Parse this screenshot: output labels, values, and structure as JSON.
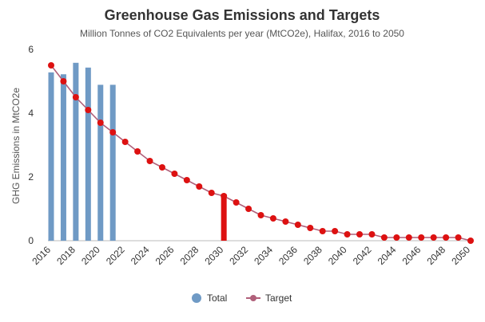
{
  "chart_data": {
    "type": "bar",
    "title": "Greenhouse Gas Emissions and Targets",
    "subtitle": "Million Tonnes of CO2 Equivalents per year (MtCO2e), Halifax, 2016 to 2050",
    "xlabel": "",
    "ylabel": "GHG Emissions in MtCO2e",
    "ylim": [
      0,
      6
    ],
    "y_ticks": [
      0,
      2,
      4,
      6
    ],
    "x_ticks": [
      2016,
      2018,
      2020,
      2022,
      2024,
      2026,
      2028,
      2030,
      2032,
      2034,
      2036,
      2038,
      2040,
      2042,
      2044,
      2046,
      2048,
      2050
    ],
    "x_range": [
      2016,
      2050
    ],
    "grid": false,
    "legend_position": "bottom",
    "series": [
      {
        "name": "Total",
        "type": "bar",
        "color": "#6f9ac5",
        "x": [
          2016,
          2017,
          2018,
          2019,
          2020,
          2021
        ],
        "values": [
          5.28,
          5.22,
          5.58,
          5.43,
          4.89,
          4.89
        ]
      },
      {
        "name": "Target",
        "type": "line",
        "line_color": "#b0607a",
        "marker_color": "#dd1111",
        "x": [
          2016,
          2017,
          2018,
          2019,
          2020,
          2021,
          2022,
          2023,
          2024,
          2025,
          2026,
          2027,
          2028,
          2029,
          2030,
          2031,
          2032,
          2033,
          2034,
          2035,
          2036,
          2037,
          2038,
          2039,
          2040,
          2041,
          2042,
          2043,
          2044,
          2045,
          2046,
          2047,
          2048,
          2049,
          2050
        ],
        "values": [
          5.5,
          5.0,
          4.5,
          4.1,
          3.7,
          3.4,
          3.1,
          2.8,
          2.5,
          2.3,
          2.1,
          1.9,
          1.7,
          1.5,
          1.4,
          1.2,
          1.0,
          0.8,
          0.7,
          0.6,
          0.5,
          0.4,
          0.3,
          0.3,
          0.2,
          0.2,
          0.2,
          0.1,
          0.1,
          0.1,
          0.1,
          0.1,
          0.1,
          0.1,
          0.0
        ]
      }
    ],
    "highlight_bar": {
      "x": 2030,
      "value": 1.46,
      "color": "#dd1111"
    }
  }
}
